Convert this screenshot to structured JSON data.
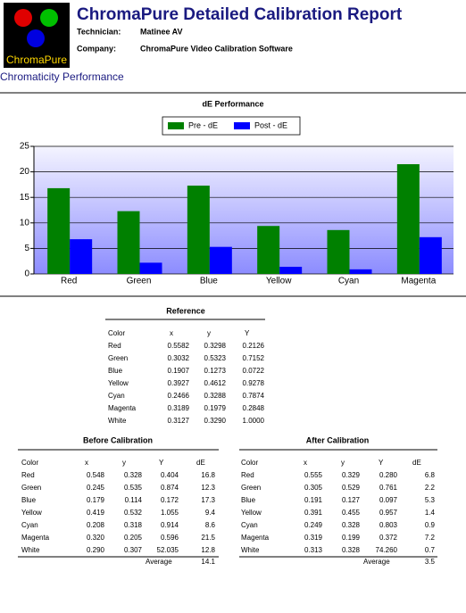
{
  "header": {
    "logo": "ChromaPure",
    "title": "ChromaPure Detailed Calibration Report",
    "fields": [
      {
        "label": "Technician:",
        "value": "Matinee AV"
      },
      {
        "label": "Company:",
        "value": "ChromaPure Video Calibration Software"
      }
    ]
  },
  "section_title": "Chromaticity Performance",
  "chart_data": {
    "type": "bar",
    "title": "dE Performance",
    "categories": [
      "Red",
      "Green",
      "Blue",
      "Yellow",
      "Cyan",
      "Magenta"
    ],
    "series": [
      {
        "name": "Pre - dE",
        "color": "#008000",
        "values": [
          16.8,
          12.3,
          17.3,
          9.4,
          8.6,
          21.5
        ]
      },
      {
        "name": "Post - dE",
        "color": "#0000ff",
        "values": [
          6.8,
          2.2,
          5.3,
          1.4,
          0.9,
          7.2
        ]
      }
    ],
    "ylim": [
      0,
      25
    ],
    "yticks": [
      0,
      5,
      10,
      15,
      20,
      25
    ],
    "grid": true,
    "legend": "top"
  },
  "tables": {
    "reference": {
      "title": "Reference",
      "columns": [
        "Color",
        "x",
        "y",
        "Y"
      ],
      "rows": [
        [
          "Red",
          "0.5582",
          "0.3298",
          "0.2126"
        ],
        [
          "Green",
          "0.3032",
          "0.5323",
          "0.7152"
        ],
        [
          "Blue",
          "0.1907",
          "0.1273",
          "0.0722"
        ],
        [
          "Yellow",
          "0.3927",
          "0.4612",
          "0.9278"
        ],
        [
          "Cyan",
          "0.2466",
          "0.3288",
          "0.7874"
        ],
        [
          "Magenta",
          "0.3189",
          "0.1979",
          "0.2848"
        ],
        [
          "White",
          "0.3127",
          "0.3290",
          "1.0000"
        ]
      ]
    },
    "before": {
      "title": "Before Calibration",
      "columns": [
        "Color",
        "x",
        "y",
        "Y",
        "dE"
      ],
      "rows": [
        [
          "Red",
          "0.548",
          "0.328",
          "0.404",
          "16.8"
        ],
        [
          "Green",
          "0.245",
          "0.535",
          "0.874",
          "12.3"
        ],
        [
          "Blue",
          "0.179",
          "0.114",
          "0.172",
          "17.3"
        ],
        [
          "Yellow",
          "0.419",
          "0.532",
          "1.055",
          "9.4"
        ],
        [
          "Cyan",
          "0.208",
          "0.318",
          "0.914",
          "8.6"
        ],
        [
          "Magenta",
          "0.320",
          "0.205",
          "0.596",
          "21.5"
        ],
        [
          "White",
          "0.290",
          "0.307",
          "52.035",
          "12.8"
        ]
      ],
      "average_label": "Average",
      "average": "14.1"
    },
    "after": {
      "title": "After Calibration",
      "columns": [
        "Color",
        "x",
        "y",
        "Y",
        "dE"
      ],
      "rows": [
        [
          "Red",
          "0.555",
          "0.329",
          "0.280",
          "6.8"
        ],
        [
          "Green",
          "0.305",
          "0.529",
          "0.761",
          "2.2"
        ],
        [
          "Blue",
          "0.191",
          "0.127",
          "0.097",
          "5.3"
        ],
        [
          "Yellow",
          "0.391",
          "0.455",
          "0.957",
          "1.4"
        ],
        [
          "Cyan",
          "0.249",
          "0.328",
          "0.803",
          "0.9"
        ],
        [
          "Magenta",
          "0.319",
          "0.199",
          "0.372",
          "7.2"
        ],
        [
          "White",
          "0.313",
          "0.328",
          "74.260",
          "0.7"
        ]
      ],
      "average_label": "Average",
      "average": "3.5"
    }
  }
}
